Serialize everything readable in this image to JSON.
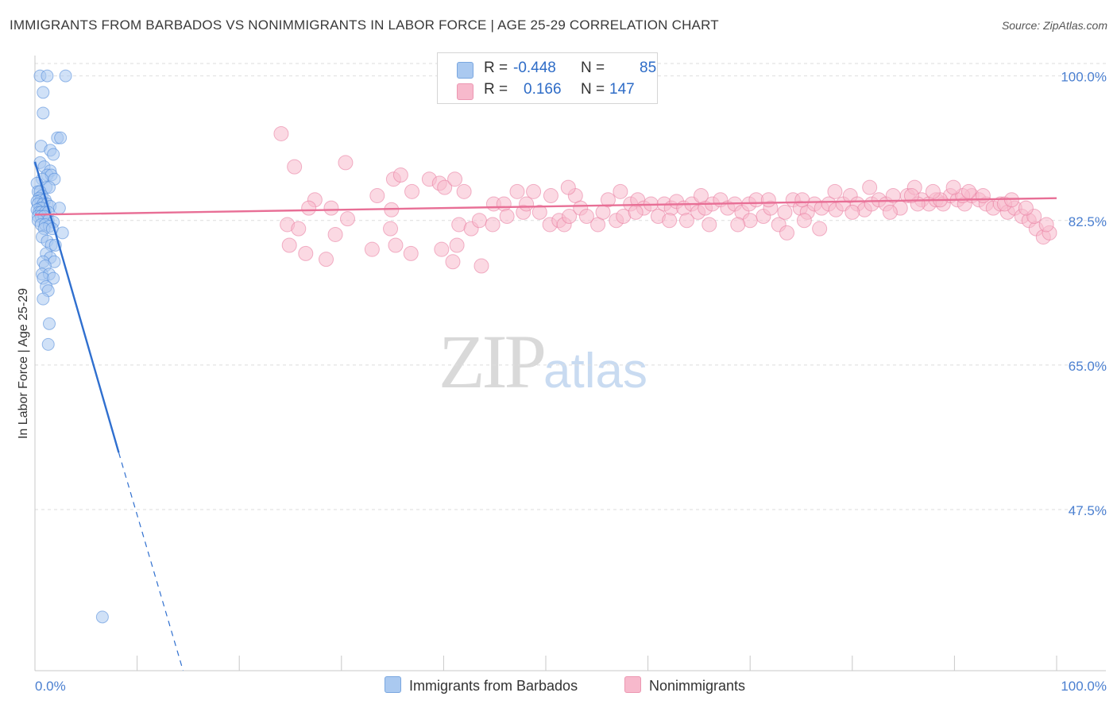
{
  "header": {
    "title": "IMMIGRANTS FROM BARBADOS VS NONIMMIGRANTS IN LABOR FORCE | AGE 25-29 CORRELATION CHART",
    "source": "Source: ZipAtlas.com"
  },
  "watermark": {
    "zip": "ZIP",
    "atlas": "atlas"
  },
  "legend": {
    "rows": [
      {
        "r_label": "R =",
        "r_value": "-0.448",
        "n_label": "N =",
        "n_value": "85",
        "color": "#aac9f0"
      },
      {
        "r_label": "R =",
        "r_value": "0.166",
        "n_label": "N =",
        "n_value": "147",
        "color": "#f7b9cc"
      }
    ]
  },
  "bottom_legend": {
    "items": [
      {
        "label": "Immigrants from Barbados",
        "color": "#aac9f0"
      },
      {
        "label": "Nonimmigrants",
        "color": "#f7b9cc"
      }
    ]
  },
  "chart_data": {
    "type": "scatter",
    "title": "IMMIGRANTS FROM BARBADOS VS NONIMMIGRANTS IN LABOR FORCE | AGE 25-29 CORRELATION CHART",
    "xlabel": "",
    "ylabel": "In Labor Force | Age 25-29",
    "xlim": [
      0,
      100
    ],
    "ylim": [
      28,
      101.5
    ],
    "x_tick_labels": [
      "0.0%",
      "100.0%"
    ],
    "y_ticks": [
      47.5,
      65.0,
      82.5,
      100.0
    ],
    "y_tick_labels": [
      "47.5%",
      "65.0%",
      "82.5%",
      "100.0%"
    ],
    "grid": true,
    "legend_position": "top-center",
    "series": [
      {
        "name": "Immigrants from Barbados",
        "color": "#4a86d8",
        "fill": "#aac9f0",
        "r": -0.448,
        "n": 85,
        "trend": {
          "x0": 0.0,
          "y0": 89.6,
          "x1": 8.2,
          "y1": 54.4,
          "dash_to_x": 14.5,
          "dash_to_y": 28.0
        },
        "points": [
          [
            0.5,
            100.0
          ],
          [
            1.2,
            100.0
          ],
          [
            3.0,
            100.0
          ],
          [
            0.8,
            98.0
          ],
          [
            0.8,
            95.5
          ],
          [
            2.2,
            92.5
          ],
          [
            2.5,
            92.5
          ],
          [
            0.6,
            91.5
          ],
          [
            1.5,
            91.0
          ],
          [
            1.8,
            90.5
          ],
          [
            0.5,
            89.5
          ],
          [
            0.9,
            89.0
          ],
          [
            1.5,
            88.5
          ],
          [
            1.2,
            88.0
          ],
          [
            1.6,
            88.0
          ],
          [
            0.7,
            87.5
          ],
          [
            1.9,
            87.5
          ],
          [
            0.2,
            87.0
          ],
          [
            1.1,
            86.5
          ],
          [
            1.4,
            86.5
          ],
          [
            0.3,
            86.0
          ],
          [
            0.5,
            86.0
          ],
          [
            0.7,
            85.5
          ],
          [
            0.4,
            85.2
          ],
          [
            0.6,
            85.0
          ],
          [
            1.0,
            85.0
          ],
          [
            0.2,
            84.8
          ],
          [
            0.3,
            84.5
          ],
          [
            0.8,
            84.5
          ],
          [
            1.2,
            84.5
          ],
          [
            0.5,
            84.0
          ],
          [
            0.7,
            84.0
          ],
          [
            1.5,
            84.2
          ],
          [
            2.4,
            84.0
          ],
          [
            0.2,
            83.8
          ],
          [
            0.4,
            83.5
          ],
          [
            0.6,
            83.5
          ],
          [
            1.0,
            83.5
          ],
          [
            1.3,
            83.5
          ],
          [
            0.3,
            83.0
          ],
          [
            0.6,
            83.0
          ],
          [
            0.9,
            83.0
          ],
          [
            1.3,
            82.5
          ],
          [
            1.8,
            82.3
          ],
          [
            0.3,
            82.5
          ],
          [
            0.6,
            82.0
          ],
          [
            1.0,
            82.0
          ],
          [
            1.4,
            81.8
          ],
          [
            0.9,
            81.5
          ],
          [
            1.7,
            81.5
          ],
          [
            0.7,
            80.5
          ],
          [
            2.7,
            81.0
          ],
          [
            1.2,
            80.0
          ],
          [
            1.6,
            79.5
          ],
          [
            2.0,
            79.5
          ],
          [
            1.1,
            78.5
          ],
          [
            1.5,
            78.0
          ],
          [
            0.8,
            77.5
          ],
          [
            1.9,
            77.5
          ],
          [
            1.0,
            77.0
          ],
          [
            0.7,
            76.0
          ],
          [
            1.4,
            76.0
          ],
          [
            0.8,
            75.5
          ],
          [
            1.8,
            75.5
          ],
          [
            1.1,
            74.5
          ],
          [
            1.3,
            74.0
          ],
          [
            0.8,
            73.0
          ],
          [
            1.4,
            70.0
          ],
          [
            1.3,
            67.5
          ],
          [
            6.6,
            34.5
          ]
        ]
      },
      {
        "name": "Nonimmigrants",
        "color": "#e8789c",
        "fill": "#f7b9cc",
        "r": 0.166,
        "n": 147,
        "trend": {
          "x0": 0.0,
          "y0": 83.2,
          "x1": 100.0,
          "y1": 85.2
        },
        "points": [
          [
            24.1,
            93.0
          ],
          [
            25.4,
            89.0
          ],
          [
            30.4,
            89.5
          ],
          [
            33.5,
            85.5
          ],
          [
            35.1,
            87.5
          ],
          [
            35.8,
            88.0
          ],
          [
            36.9,
            86.0
          ],
          [
            38.6,
            87.5
          ],
          [
            39.6,
            87.0
          ],
          [
            40.1,
            86.5
          ],
          [
            41.1,
            87.5
          ],
          [
            42.0,
            86.0
          ],
          [
            27.4,
            85.0
          ],
          [
            26.8,
            84.0
          ],
          [
            29.0,
            84.0
          ],
          [
            34.9,
            83.8
          ],
          [
            30.6,
            82.7
          ],
          [
            24.7,
            82.0
          ],
          [
            25.8,
            81.5
          ],
          [
            29.4,
            80.8
          ],
          [
            34.8,
            81.5
          ],
          [
            41.5,
            82.0
          ],
          [
            42.7,
            81.5
          ],
          [
            43.5,
            82.5
          ],
          [
            44.8,
            82.0
          ],
          [
            47.8,
            83.5
          ],
          [
            44.9,
            84.5
          ],
          [
            45.9,
            84.5
          ],
          [
            48.1,
            84.5
          ],
          [
            49.4,
            83.5
          ],
          [
            47.2,
            86.0
          ],
          [
            50.4,
            82.0
          ],
          [
            51.3,
            82.5
          ],
          [
            51.8,
            82.0
          ],
          [
            52.3,
            83.0
          ],
          [
            52.9,
            85.5
          ],
          [
            53.4,
            84.0
          ],
          [
            54.0,
            83.0
          ],
          [
            55.1,
            82.0
          ],
          [
            55.6,
            83.5
          ],
          [
            56.9,
            82.5
          ],
          [
            57.6,
            83.0
          ],
          [
            58.3,
            84.5
          ],
          [
            59.0,
            85.0
          ],
          [
            59.6,
            84.0
          ],
          [
            60.3,
            84.5
          ],
          [
            61.0,
            83.0
          ],
          [
            61.6,
            84.5
          ],
          [
            62.3,
            84.0
          ],
          [
            62.8,
            84.8
          ],
          [
            63.5,
            84.0
          ],
          [
            64.3,
            84.5
          ],
          [
            64.9,
            83.5
          ],
          [
            65.6,
            84.0
          ],
          [
            66.3,
            84.5
          ],
          [
            67.1,
            85.0
          ],
          [
            67.8,
            84.0
          ],
          [
            68.5,
            84.5
          ],
          [
            69.2,
            83.5
          ],
          [
            69.9,
            84.5
          ],
          [
            70.6,
            85.0
          ],
          [
            71.3,
            83.0
          ],
          [
            72.0,
            84.0
          ],
          [
            72.8,
            82.0
          ],
          [
            73.4,
            83.5
          ],
          [
            74.2,
            85.0
          ],
          [
            74.9,
            84.0
          ],
          [
            75.6,
            83.5
          ],
          [
            76.3,
            84.5
          ],
          [
            77.0,
            84.0
          ],
          [
            77.7,
            84.5
          ],
          [
            78.4,
            83.8
          ],
          [
            79.1,
            84.5
          ],
          [
            79.8,
            85.5
          ],
          [
            80.5,
            84.5
          ],
          [
            81.2,
            83.8
          ],
          [
            81.9,
            84.5
          ],
          [
            82.6,
            85.0
          ],
          [
            83.3,
            84.5
          ],
          [
            84.0,
            85.5
          ],
          [
            84.7,
            84.0
          ],
          [
            85.4,
            85.5
          ],
          [
            86.1,
            86.5
          ],
          [
            86.8,
            85.0
          ],
          [
            87.5,
            84.5
          ],
          [
            88.2,
            85.0
          ],
          [
            88.9,
            84.5
          ],
          [
            89.6,
            85.5
          ],
          [
            90.3,
            85.0
          ],
          [
            91.0,
            84.5
          ],
          [
            91.7,
            85.5
          ],
          [
            92.4,
            85.0
          ],
          [
            93.1,
            84.5
          ],
          [
            93.8,
            84.0
          ],
          [
            94.5,
            84.5
          ],
          [
            95.2,
            83.5
          ],
          [
            95.9,
            84.0
          ],
          [
            96.6,
            83.0
          ],
          [
            97.3,
            82.5
          ],
          [
            98.0,
            81.5
          ],
          [
            98.7,
            80.5
          ],
          [
            99.3,
            81.0
          ],
          [
            63.8,
            82.5
          ],
          [
            66.0,
            82.0
          ],
          [
            70.0,
            82.5
          ],
          [
            73.6,
            81.0
          ],
          [
            75.3,
            82.5
          ],
          [
            76.8,
            81.5
          ],
          [
            80.0,
            83.5
          ],
          [
            83.7,
            83.5
          ],
          [
            86.4,
            84.5
          ],
          [
            90.8,
            85.5
          ],
          [
            94.9,
            84.5
          ],
          [
            97.8,
            83.0
          ],
          [
            48.8,
            86.0
          ],
          [
            56.1,
            85.0
          ],
          [
            58.8,
            83.5
          ],
          [
            62.1,
            82.5
          ],
          [
            65.2,
            85.5
          ],
          [
            68.8,
            82.0
          ],
          [
            24.9,
            79.5
          ],
          [
            26.5,
            78.5
          ],
          [
            28.5,
            77.8
          ],
          [
            33.0,
            79.0
          ],
          [
            35.3,
            79.5
          ],
          [
            36.8,
            78.5
          ],
          [
            39.8,
            79.0
          ],
          [
            40.9,
            77.5
          ],
          [
            41.3,
            79.5
          ],
          [
            43.7,
            77.0
          ],
          [
            50.5,
            85.5
          ],
          [
            52.2,
            86.5
          ],
          [
            57.3,
            86.0
          ],
          [
            71.8,
            85.0
          ],
          [
            75.1,
            85.0
          ],
          [
            85.8,
            85.5
          ],
          [
            88.6,
            85.0
          ],
          [
            92.8,
            85.5
          ],
          [
            95.6,
            85.0
          ],
          [
            97.0,
            84.0
          ],
          [
            99.0,
            82.0
          ],
          [
            78.3,
            86.0
          ],
          [
            81.7,
            86.5
          ],
          [
            87.9,
            86.0
          ],
          [
            89.9,
            86.5
          ],
          [
            91.4,
            86.0
          ],
          [
            46.2,
            83.0
          ]
        ]
      }
    ]
  }
}
